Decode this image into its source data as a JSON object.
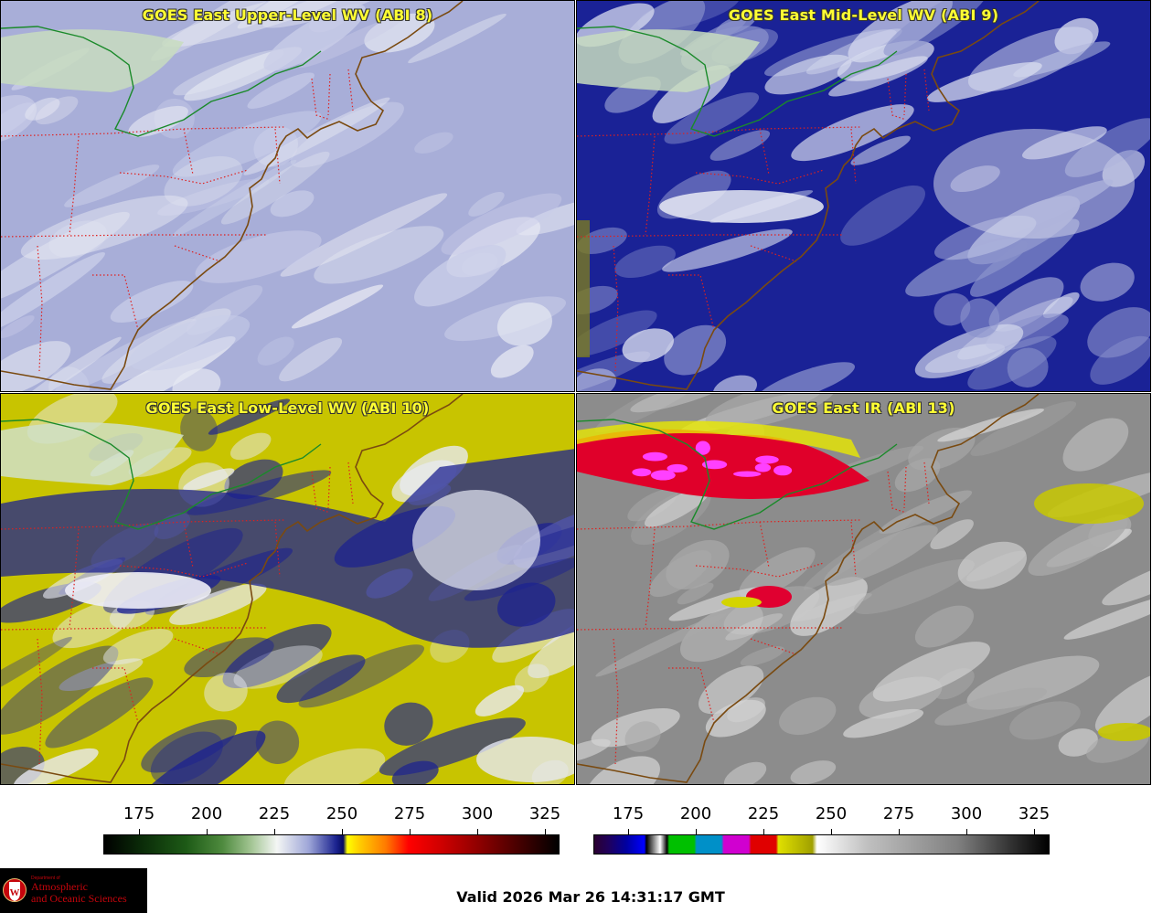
{
  "panels": [
    {
      "id": "p1",
      "title": "GOES East Upper-Level WV (ABI 8)",
      "scheme": "upper"
    },
    {
      "id": "p2",
      "title": "GOES East Mid-Level WV (ABI 9)",
      "scheme": "mid"
    },
    {
      "id": "p3",
      "title": "GOES East Low-Level WV (ABI 10)",
      "scheme": "low"
    },
    {
      "id": "p4",
      "title": "GOES East IR (ABI 13)",
      "scheme": "ir"
    }
  ],
  "colorbars": {
    "wv": {
      "ticks": [
        "175",
        "200",
        "225",
        "250",
        "275",
        "300",
        "325"
      ]
    },
    "ir": {
      "ticks": [
        "175",
        "200",
        "225",
        "250",
        "275",
        "300",
        "325"
      ]
    }
  },
  "colors": {
    "state_borders": "#e0201e",
    "coastline": "#7a4a10",
    "intl_border": "#1a8a2a",
    "title_text": "#ffff33"
  },
  "valid_time": "Valid 2026 Mar 26 14:31:17 GMT",
  "logo": {
    "line1": "Department of",
    "line2": "Atmospheric",
    "line3": "and Oceanic Sciences"
  }
}
